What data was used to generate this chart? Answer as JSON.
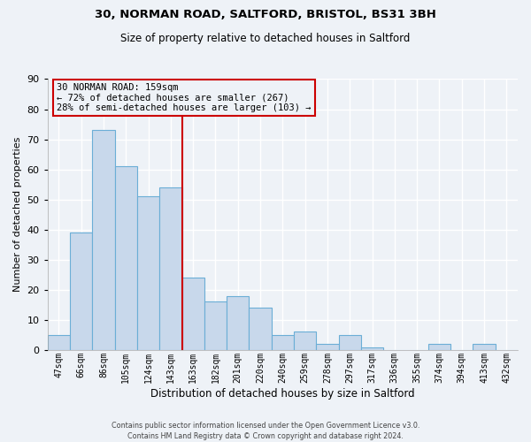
{
  "title1": "30, NORMAN ROAD, SALTFORD, BRISTOL, BS31 3BH",
  "title2": "Size of property relative to detached houses in Saltford",
  "xlabel": "Distribution of detached houses by size in Saltford",
  "ylabel": "Number of detached properties",
  "bar_labels": [
    "47sqm",
    "66sqm",
    "86sqm",
    "105sqm",
    "124sqm",
    "143sqm",
    "163sqm",
    "182sqm",
    "201sqm",
    "220sqm",
    "240sqm",
    "259sqm",
    "278sqm",
    "297sqm",
    "317sqm",
    "336sqm",
    "355sqm",
    "374sqm",
    "394sqm",
    "413sqm",
    "432sqm"
  ],
  "bar_values": [
    5,
    39,
    73,
    61,
    51,
    54,
    24,
    16,
    18,
    14,
    5,
    6,
    2,
    5,
    1,
    0,
    0,
    2,
    0,
    2,
    0
  ],
  "bar_color": "#c8d8eb",
  "bar_edge_color": "#6baed6",
  "vline_color": "#cc0000",
  "vline_x_index": 6,
  "ylim": [
    0,
    90
  ],
  "yticks": [
    0,
    10,
    20,
    30,
    40,
    50,
    60,
    70,
    80,
    90
  ],
  "annotation_box_text": [
    "30 NORMAN ROAD: 159sqm",
    "← 72% of detached houses are smaller (267)",
    "28% of semi-detached houses are larger (103) →"
  ],
  "annotation_box_edge_color": "#cc0000",
  "bg_color": "#eef2f7",
  "grid_color": "#ffffff",
  "footer1": "Contains HM Land Registry data © Crown copyright and database right 2024.",
  "footer2": "Contains public sector information licensed under the Open Government Licence v3.0."
}
